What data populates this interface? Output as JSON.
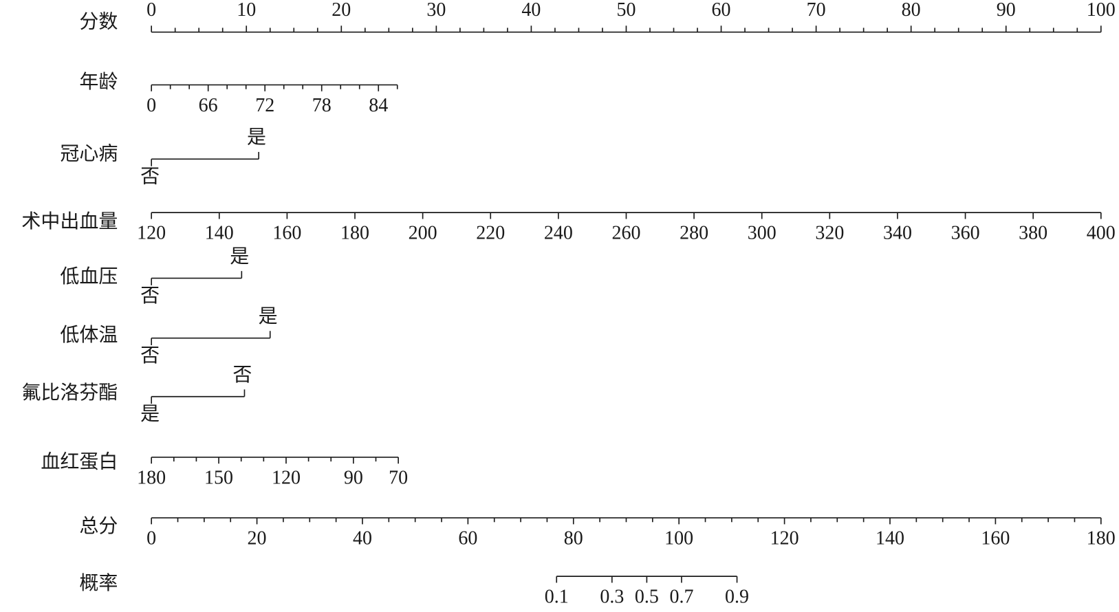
{
  "chart_data": {
    "type": "nomogram",
    "points_axis": {
      "label": "分数",
      "lim": [
        0,
        100
      ],
      "ticks": [
        0,
        10,
        20,
        30,
        40,
        50,
        60,
        70,
        80,
        90,
        100
      ],
      "minor_ticks": [
        2.5,
        5,
        7.5,
        12.5,
        15,
        17.5,
        22.5,
        25,
        27.5,
        32.5,
        35,
        37.5,
        42.5,
        45,
        47.5,
        52.5,
        55,
        57.5,
        62.5,
        65,
        67.5,
        72.5,
        75,
        77.5,
        82.5,
        85,
        87.5,
        92.5,
        95,
        97.5
      ]
    },
    "variables": [
      {
        "label": "年龄",
        "kind": "continuous",
        "lim": [
          60,
          86
        ],
        "points_lim": [
          0,
          25.9
        ],
        "ticks": [
          {
            "value": 60,
            "label": "0"
          },
          66,
          72,
          78,
          84
        ],
        "minor_ticks": [
          62,
          64,
          68,
          70,
          74,
          76,
          80,
          82,
          86
        ]
      },
      {
        "label": "冠心病",
        "kind": "categorical",
        "categories": [
          "否",
          "是"
        ],
        "points": [
          0,
          11.3
        ]
      },
      {
        "label": "术中出血量",
        "kind": "continuous",
        "lim": [
          120,
          400
        ],
        "points_lim": [
          0,
          100
        ],
        "ticks": [
          120,
          140,
          160,
          180,
          200,
          220,
          240,
          260,
          280,
          300,
          320,
          340,
          360,
          380,
          400
        ],
        "minor_ticks": []
      },
      {
        "label": "低血压",
        "kind": "categorical",
        "categories": [
          "否",
          "是"
        ],
        "points": [
          0,
          9.5
        ]
      },
      {
        "label": "低体温",
        "kind": "categorical",
        "categories": [
          "否",
          "是"
        ],
        "points": [
          0,
          12.5
        ]
      },
      {
        "label": "氟比洛芬酯",
        "kind": "categorical",
        "categories": [
          "是",
          "否"
        ],
        "points": [
          0,
          9.8
        ]
      },
      {
        "label": "血红蛋白",
        "kind": "continuous",
        "lim": [
          180,
          70
        ],
        "points_lim": [
          0,
          26.0
        ],
        "ticks": [
          180,
          150,
          120,
          90,
          70
        ],
        "minor_ticks": [
          170,
          160,
          140,
          130,
          110,
          100,
          80
        ]
      }
    ],
    "total_axis": {
      "label": "总分",
      "lim": [
        0,
        180
      ],
      "ticks": [
        0,
        20,
        40,
        60,
        80,
        100,
        120,
        140,
        160,
        180
      ],
      "minor_ticks": [
        5,
        10,
        15,
        25,
        30,
        35,
        45,
        50,
        55,
        65,
        70,
        75,
        85,
        90,
        95,
        105,
        110,
        115,
        125,
        130,
        135,
        145,
        150,
        155,
        165,
        170,
        175
      ]
    },
    "probability": {
      "label": "概率",
      "scale": "logit",
      "lim": [
        0.1,
        0.9
      ],
      "points_lim": [
        76.8,
        111.0
      ],
      "ticks": [
        0.1,
        0.3,
        0.5,
        0.7,
        0.9
      ],
      "minor_ticks": []
    }
  }
}
